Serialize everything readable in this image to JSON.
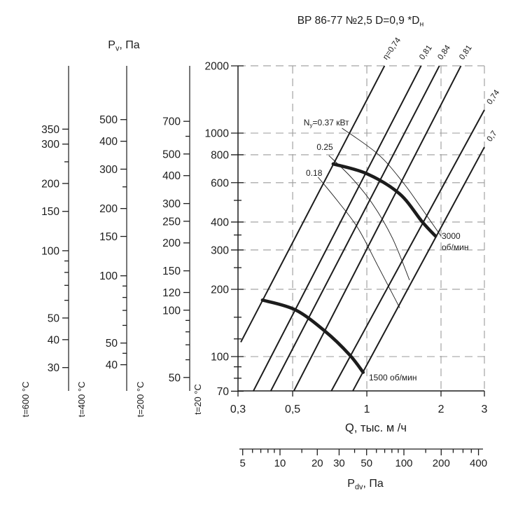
{
  "page": {
    "background": "#ffffff",
    "ink_color": "#1c1c1c",
    "grid_color": "#9b9b9b"
  },
  "title": {
    "main": "ВР 86-77 №2,5  D=0,9  *D",
    "subscript": "н"
  },
  "chart_data": {
    "type": "line",
    "title": "ВР 86-77 №2,5  D=0,9  *Dн",
    "x_axis": {
      "label": "Q, тыс. м /ч",
      "scale": "log",
      "range": [
        0.3,
        3
      ],
      "tick_values": [
        0.3,
        0.5,
        1,
        2,
        3
      ],
      "tick_labels": [
        "0,3",
        "0,5",
        "1",
        "2",
        "3"
      ],
      "grid_values": [
        0.5,
        1,
        2,
        3
      ]
    },
    "y_axis": {
      "label_base": "P",
      "label_sub": "v",
      "label_suffix": ", Па",
      "scale": "log",
      "range": [
        70,
        2000
      ],
      "grid_values": [
        2000,
        1000,
        800,
        600,
        400,
        300,
        200,
        100
      ]
    },
    "pressure_scales": [
      {
        "temp": "t=600 °C",
        "ref_pressure_at_1000": 336,
        "labeled_ticks": [
          350,
          300,
          200,
          150,
          100,
          50,
          40,
          30
        ],
        "minor_ticks": [
          250,
          90,
          80,
          70,
          60
        ]
      },
      {
        "temp": "t=400 °C",
        "ref_pressure_at_1000": 435,
        "labeled_ticks": [
          500,
          400,
          300,
          200,
          150,
          100,
          50,
          40
        ],
        "minor_ticks": [
          250,
          90,
          80,
          70,
          60,
          45
        ]
      },
      {
        "temp": "t=200 °C",
        "ref_pressure_at_1000": 620,
        "labeled_ticks": [
          700,
          500,
          400,
          300,
          250,
          200,
          150,
          120,
          100,
          50
        ],
        "minor_ticks": [
          600,
          90,
          80,
          70,
          60
        ]
      },
      {
        "temp": "t=20 °C",
        "ref_pressure_at_1000": 1000,
        "labeled_ticks": [
          2000,
          1000,
          800,
          600,
          400,
          300,
          200,
          100,
          70
        ],
        "minor_ticks": [
          500,
          350,
          250,
          150,
          120,
          90,
          80
        ]
      }
    ],
    "efficiency_lines": [
      {
        "label": "η=0,74",
        "label_side": "top",
        "points": [
          [
            0.308,
            116
          ],
          [
            1.18,
            2000
          ]
        ]
      },
      {
        "label": "0,81",
        "label_side": "top",
        "points": [
          [
            0.346,
            70
          ],
          [
            1.66,
            2000
          ]
        ]
      },
      {
        "label": "0,84",
        "label_side": "top",
        "points": [
          [
            0.407,
            70
          ],
          [
            1.97,
            2000
          ]
        ]
      },
      {
        "label": "0,81",
        "label_side": "top",
        "points": [
          [
            0.505,
            70
          ],
          [
            2.41,
            2000
          ]
        ]
      },
      {
        "label": "0,74",
        "label_side": "right",
        "points": [
          [
            0.717,
            70
          ],
          [
            3.0,
            1270
          ]
        ]
      },
      {
        "label": "0,7",
        "label_side": "right",
        "points": [
          [
            0.876,
            70
          ],
          [
            3.0,
            866
          ]
        ]
      }
    ],
    "speed_curves": [
      {
        "rpm": "3000",
        "unit": "об/мин",
        "points": [
          [
            0.73,
            728
          ],
          [
            1.0,
            658
          ],
          [
            1.36,
            534
          ],
          [
            1.68,
            400
          ],
          [
            1.9,
            346
          ]
        ]
      },
      {
        "rpm": "1500",
        "unit": "об/мин",
        "points": [
          [
            0.377,
            179
          ],
          [
            0.512,
            162
          ],
          [
            0.676,
            130
          ],
          [
            0.85,
            102
          ],
          [
            0.966,
            85
          ]
        ]
      }
    ],
    "power_curves": [
      {
        "label_base": "N",
        "label_sub": "у",
        "label_suffix": "=0.37 кВт",
        "points": [
          [
            0.793,
            1052
          ],
          [
            1.11,
            805
          ],
          [
            1.4,
            603
          ],
          [
            1.65,
            469
          ],
          [
            2.0,
            346
          ]
        ]
      },
      {
        "label_base": "",
        "label_sub": "",
        "label_suffix": "0.25",
        "points": [
          [
            0.701,
            794
          ],
          [
            0.863,
            635
          ],
          [
            1.05,
            486
          ],
          [
            1.27,
            339
          ],
          [
            1.49,
            220
          ]
        ]
      },
      {
        "label_base": "",
        "label_sub": "",
        "label_suffix": "0.18",
        "points": [
          [
            0.634,
            635
          ],
          [
            0.753,
            504
          ],
          [
            0.918,
            377
          ],
          [
            1.11,
            254
          ],
          [
            1.36,
            165
          ]
        ]
      }
    ],
    "dynamic_pressure_axis": {
      "label_base": "P",
      "label_sub": "dv",
      "label_suffix": ", Па",
      "scale": "log",
      "tick_values": [
        5,
        10,
        20,
        30,
        50,
        100,
        200,
        400
      ],
      "minor_ticks": [
        6,
        7,
        8,
        9,
        15,
        40,
        60,
        70,
        80,
        90,
        150,
        250,
        300,
        350
      ]
    }
  }
}
